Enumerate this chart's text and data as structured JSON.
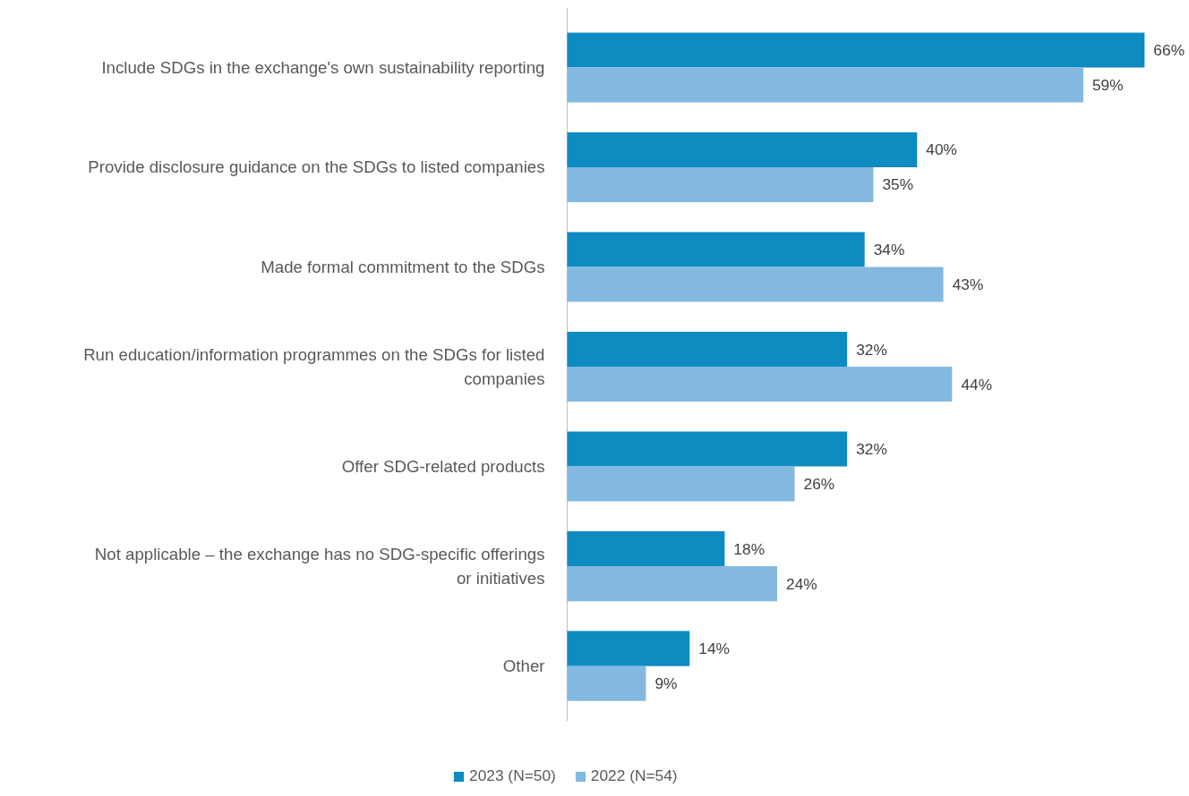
{
  "chart_data": {
    "type": "bar",
    "orientation": "horizontal",
    "categories": [
      "Include SDGs in the exchange's own sustainability reporting",
      "Provide disclosure guidance on the SDGs to listed companies",
      "Made formal commitment to the SDGs",
      "Run education/information programmes on the SDGs for listed companies",
      "Offer SDG-related products",
      "Not applicable – the exchange has no SDG-specific offerings or initiatives",
      "Other"
    ],
    "series": [
      {
        "name": "2023 (N=50)",
        "color": "#0e8bc0",
        "values": [
          66,
          40,
          34,
          32,
          32,
          18,
          14
        ],
        "value_labels": [
          "66%",
          "40%",
          "34%",
          "32%",
          "32%",
          "18%",
          "14%"
        ]
      },
      {
        "name": "2022 (N=54)",
        "color": "#83b9e0",
        "values": [
          59,
          35,
          43,
          44,
          26,
          24,
          9
        ],
        "value_labels": [
          "59%",
          "35%",
          "43%",
          "44%",
          "26%",
          "24%",
          "9%"
        ]
      }
    ],
    "legend": "bottom",
    "grid": false
  }
}
